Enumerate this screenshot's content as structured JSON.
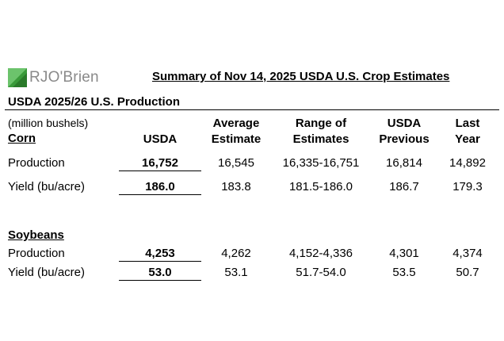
{
  "brand": {
    "logo_text": "RJO'Brien",
    "colors": {
      "green": "#3a9a3a",
      "gray": "#8a8a8a"
    }
  },
  "report_title": "Summary of Nov 14, 2025 USDA U.S. Crop Estimates",
  "section_title": "USDA 2025/26 U.S. Production",
  "units": "(million bushels)",
  "headers": {
    "usda": "USDA",
    "average_estimate": [
      "Average",
      "Estimate"
    ],
    "range_of_estimates": [
      "Range of",
      "Estimates"
    ],
    "usda_previous": [
      "USDA",
      "Previous"
    ],
    "last_year": [
      "Last",
      "Year"
    ]
  },
  "corn": {
    "label": "Corn",
    "rows": [
      {
        "label": "Production",
        "usda": "16,752",
        "average": "16,545",
        "range": "16,335-16,751",
        "previous": "16,814",
        "last_year": "14,892"
      },
      {
        "label": "Yield (bu/acre)",
        "usda": "186.0",
        "average": "183.8",
        "range": "181.5-186.0",
        "previous": "186.7",
        "last_year": "179.3"
      }
    ]
  },
  "soybeans": {
    "label": "Soybeans",
    "rows": [
      {
        "label": "Production",
        "usda": "4,253",
        "average": "4,262",
        "range": "4,152-4,336",
        "previous": "4,301",
        "last_year": "4,374"
      },
      {
        "label": "Yield (bu/acre)",
        "usda": "53.0",
        "average": "53.1",
        "range": "51.7-54.0",
        "previous": "53.5",
        "last_year": "50.7"
      }
    ]
  }
}
